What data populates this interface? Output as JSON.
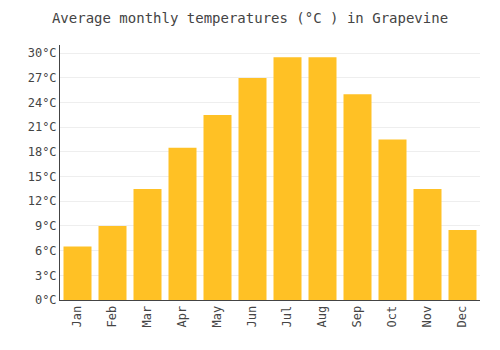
{
  "chart_data": {
    "type": "bar",
    "title": "Average monthly temperatures (°C ) in Grapevine",
    "categories": [
      "Jan",
      "Feb",
      "Mar",
      "Apr",
      "May",
      "Jun",
      "Jul",
      "Aug",
      "Sep",
      "Oct",
      "Nov",
      "Dec"
    ],
    "values": [
      6.5,
      9.0,
      13.5,
      18.5,
      22.5,
      27.0,
      29.5,
      29.5,
      25.0,
      19.5,
      13.5,
      8.5
    ],
    "color": "#FFC125",
    "ylim": [
      0,
      31
    ],
    "yticks": [
      {
        "value": 0,
        "label": "0°C"
      },
      {
        "value": 3,
        "label": "3°C"
      },
      {
        "value": 6,
        "label": "6°C"
      },
      {
        "value": 9,
        "label": "9°C"
      },
      {
        "value": 12,
        "label": "12°C"
      },
      {
        "value": 15,
        "label": "15°C"
      },
      {
        "value": 18,
        "label": "18°C"
      },
      {
        "value": 21,
        "label": "21°C"
      },
      {
        "value": 24,
        "label": "24°C"
      },
      {
        "value": 27,
        "label": "27°C"
      },
      {
        "value": 30,
        "label": "30°C"
      }
    ],
    "grid": true
  }
}
